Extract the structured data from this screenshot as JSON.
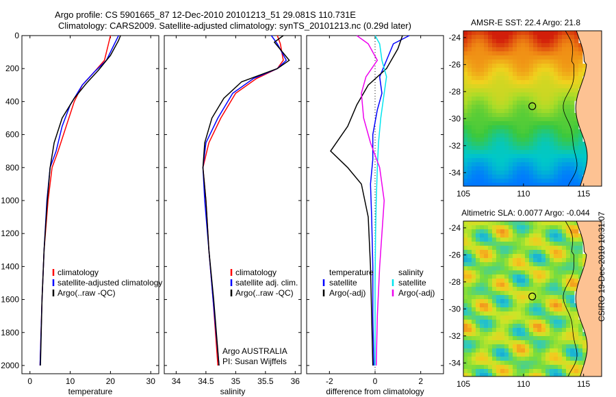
{
  "header": {
    "line1": "Argo profile: CS 5901665_87 12-Dec-2010 20101213_51 29.081S 110.731E",
    "line2": "Climatology: CARS2009. Satellite-adjusted climatology: synTS_20101213.nc (0.29d later)"
  },
  "stamp": "CSIRO 19-Dec-2010 10:31:07",
  "colors": {
    "clim": "#ff0000",
    "sat": "#0000ff",
    "argo": "#000000",
    "sal_sat": "#00e5ee",
    "sal_argo": "#ee00ee",
    "land": "#fdc293"
  },
  "chart_data": [
    {
      "type": "line",
      "id": "temperature",
      "xlabel": "temperature",
      "ylabel": "",
      "xlim": [
        -2,
        32
      ],
      "ylim": [
        2050,
        0
      ],
      "y_reversed": true,
      "xticks": [
        "0",
        "10",
        "20",
        "30"
      ],
      "yticks": [
        "0",
        "200",
        "400",
        "600",
        "800",
        "1000",
        "1200",
        "1400",
        "1600",
        "1800",
        "2000"
      ],
      "legend": [
        "climatology",
        "satellite-adjusted climatology",
        "Argo(..raw -QC)"
      ],
      "series": [
        {
          "name": "climatology",
          "color": "#ff0000",
          "x": [
            20,
            19.5,
            18.5,
            16,
            13,
            11,
            9,
            7,
            5.5,
            4.5,
            3.5,
            3,
            2.5
          ],
          "y": [
            0,
            50,
            150,
            220,
            300,
            400,
            550,
            700,
            800,
            1000,
            1300,
            1600,
            2000
          ]
        },
        {
          "name": "satellite-adjusted climatology",
          "color": "#0000ff",
          "x": [
            22,
            21,
            19,
            16,
            13,
            10,
            8,
            6.5,
            5,
            4.2,
            3.5,
            3,
            2.5
          ],
          "y": [
            0,
            50,
            150,
            220,
            300,
            420,
            550,
            700,
            800,
            1000,
            1300,
            1600,
            2000
          ]
        },
        {
          "name": "Argo(..raw -QC)",
          "color": "#000000",
          "x": [
            22.5,
            22,
            20,
            17,
            14,
            11,
            8,
            6,
            5,
            4.3,
            3.5,
            3,
            2.6
          ],
          "y": [
            0,
            30,
            120,
            210,
            290,
            380,
            500,
            650,
            800,
            1000,
            1300,
            1600,
            2000
          ]
        }
      ]
    },
    {
      "type": "line",
      "id": "salinity",
      "xlabel": "salinity",
      "xlim": [
        33.8,
        36.1
      ],
      "ylim": [
        2050,
        0
      ],
      "y_reversed": true,
      "xticks": [
        "34",
        "34.5",
        "35",
        "35.5",
        "36"
      ],
      "legend": [
        "climatology",
        "satellite adj. clim.",
        "Argo(..raw -QC)"
      ],
      "annotation": [
        "Argo AUSTRALIA",
        "PI: Susan Wijffels"
      ],
      "series": [
        {
          "name": "climatology",
          "color": "#ff0000",
          "x": [
            35.7,
            35.75,
            35.8,
            35.7,
            35.35,
            35.0,
            34.75,
            34.55,
            34.45,
            34.5,
            34.55,
            34.62,
            34.7
          ],
          "y": [
            0,
            50,
            150,
            200,
            260,
            350,
            500,
            650,
            800,
            1000,
            1300,
            1600,
            2000
          ]
        },
        {
          "name": "satellite adj. clim.",
          "color": "#0000ff",
          "x": [
            35.6,
            35.7,
            35.85,
            35.7,
            35.3,
            34.95,
            34.7,
            34.5,
            34.45,
            34.48,
            34.55,
            34.62,
            34.72
          ],
          "y": [
            0,
            50,
            150,
            200,
            260,
            350,
            500,
            650,
            800,
            1000,
            1300,
            1600,
            2000
          ]
        },
        {
          "name": "Argo(..raw -QC)",
          "color": "#000000",
          "x": [
            35.8,
            35.65,
            35.9,
            35.7,
            35.1,
            34.8,
            34.6,
            34.48,
            34.45,
            34.5,
            34.55,
            34.63,
            34.72
          ],
          "y": [
            0,
            40,
            150,
            200,
            280,
            380,
            500,
            650,
            800,
            1000,
            1300,
            1600,
            2000
          ]
        }
      ]
    },
    {
      "type": "line",
      "id": "difference",
      "xlabel": "difference from climatology",
      "xlim": [
        -3,
        3
      ],
      "ylim": [
        2050,
        0
      ],
      "y_reversed": true,
      "xticks": [
        "-2",
        "0",
        "2"
      ],
      "legend_left_title": "temperature",
      "legend_right_title": "salinity",
      "legend": [
        "satellite",
        "Argo(-adj)",
        "satellite",
        "Argo(-adj)"
      ],
      "series": [
        {
          "name": "temperature satellite",
          "color": "#0000ff",
          "x": [
            1.5,
            0.8,
            0.5,
            0.2,
            0.3,
            0.1,
            -0.1,
            -0.1,
            -0.2,
            -0.15,
            -0.1,
            -0.1,
            -0.05
          ],
          "y": [
            0,
            50,
            150,
            250,
            350,
            450,
            600,
            750,
            900,
            1100,
            1400,
            1700,
            2000
          ]
        },
        {
          "name": "temperature Argo(-adj)",
          "color": "#000000",
          "x": [
            1.2,
            1.0,
            0.5,
            -0.3,
            -0.8,
            -1.2,
            -1.95,
            -1.2,
            -0.6,
            -0.3,
            -0.2,
            -0.15,
            -0.1
          ],
          "y": [
            0,
            80,
            200,
            300,
            420,
            550,
            700,
            800,
            900,
            1100,
            1400,
            1700,
            2000
          ]
        },
        {
          "name": "salinity satellite",
          "color": "#00e5ee",
          "x": [
            0,
            0.2,
            0.3,
            0.5,
            0.4,
            0.25,
            0.15,
            0.1,
            0.05,
            0.02,
            0,
            0,
            0
          ],
          "y": [
            0,
            50,
            150,
            250,
            350,
            500,
            650,
            800,
            1000,
            1200,
            1500,
            1800,
            2000
          ]
        },
        {
          "name": "salinity Argo(-adj)",
          "color": "#ee00ee",
          "x": [
            -0.8,
            -0.3,
            0.1,
            -0.4,
            -0.6,
            -0.5,
            -0.2,
            0.2,
            0.4,
            0.3,
            0.2,
            0.1,
            0.05
          ],
          "y": [
            0,
            50,
            150,
            250,
            350,
            500,
            650,
            800,
            1000,
            1200,
            1400,
            1700,
            2000
          ]
        }
      ]
    },
    {
      "type": "heatmap",
      "id": "sst-map",
      "title": "AMSR-E SST: 22.4 Argo: 21.8",
      "xlim": [
        105,
        116.5
      ],
      "ylim": [
        -35,
        -23.5
      ],
      "xticks": [
        "105",
        "110",
        "115"
      ],
      "yticks": [
        "-24",
        "-26",
        "-28",
        "-30",
        "-32",
        "-34"
      ],
      "marker": {
        "lon": 110.73,
        "lat": -29.08
      }
    },
    {
      "type": "heatmap",
      "id": "sla-map",
      "title": "Altimetric SLA: 0.0077 Argo: -0.044",
      "xlim": [
        105,
        116.5
      ],
      "ylim": [
        -35,
        -23.5
      ],
      "xticks": [
        "105",
        "110",
        "115"
      ],
      "yticks": [
        "-24",
        "-26",
        "-28",
        "-30",
        "-32",
        "-34"
      ],
      "marker": {
        "lon": 110.73,
        "lat": -29.08
      }
    }
  ]
}
